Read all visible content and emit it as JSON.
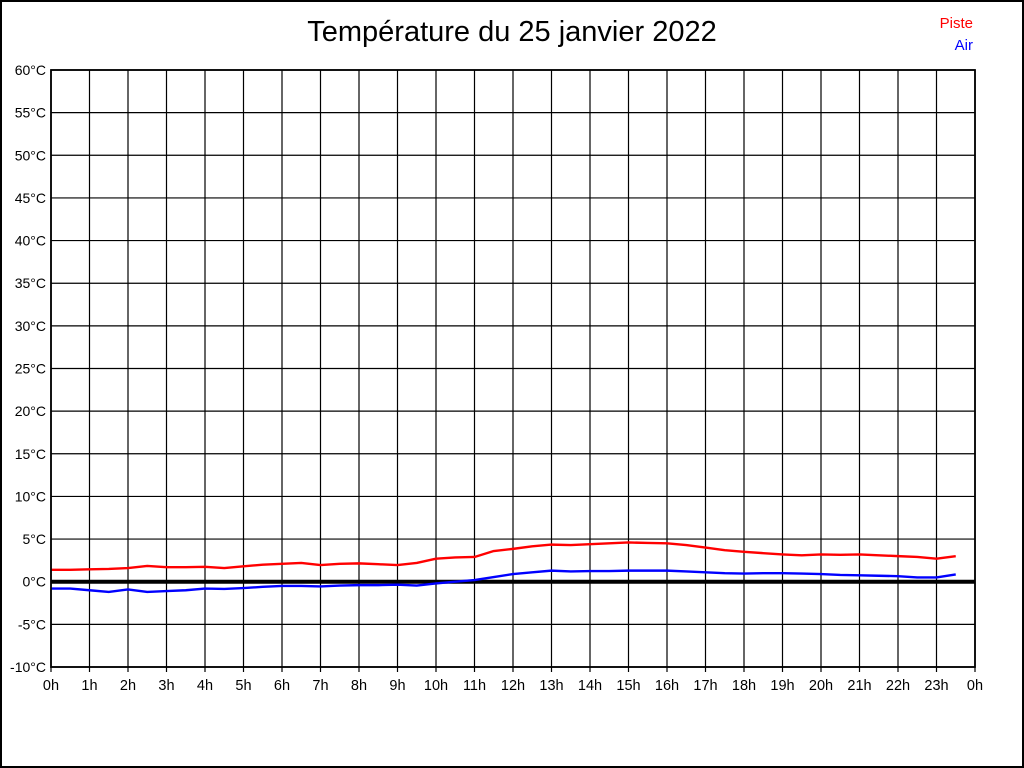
{
  "title": "Température du 25 janvier 2022",
  "legend": [
    {
      "label": "Piste",
      "color": "#ff0000"
    },
    {
      "label": "Air",
      "color": "#0000ff"
    }
  ],
  "colors": {
    "grid": "#000000",
    "frame": "#000000",
    "text": "#000000",
    "zero_line": "#000000",
    "background": "#ffffff"
  },
  "chart_data": {
    "type": "line",
    "title": "Température du 25 janvier 2022",
    "xlabel": "",
    "ylabel": "",
    "xlim": [
      0,
      24
    ],
    "ylim": [
      -10,
      60
    ],
    "grid": true,
    "legend_position": "top-right",
    "x_tick_values": [
      0,
      1,
      2,
      3,
      4,
      5,
      6,
      7,
      8,
      9,
      10,
      11,
      12,
      13,
      14,
      15,
      16,
      17,
      18,
      19,
      20,
      21,
      22,
      23,
      24
    ],
    "x_tick_labels": [
      "0h",
      "1h",
      "2h",
      "3h",
      "4h",
      "5h",
      "6h",
      "7h",
      "8h",
      "9h",
      "10h",
      "11h",
      "12h",
      "13h",
      "14h",
      "15h",
      "16h",
      "17h",
      "18h",
      "19h",
      "20h",
      "21h",
      "22h",
      "23h",
      "0h"
    ],
    "y_tick_values": [
      60,
      55,
      50,
      45,
      40,
      35,
      30,
      25,
      20,
      15,
      10,
      5,
      0,
      -5,
      -10
    ],
    "y_tick_labels": [
      "60°C",
      "55°C",
      "50°C",
      "45°C",
      "40°C",
      "35°C",
      "30°C",
      "25°C",
      "20°C",
      "15°C",
      "10°C",
      "5°C",
      "0°C",
      "-5°C",
      "-10°C"
    ],
    "zero_line": {
      "value": 0,
      "width": 4
    },
    "x": [
      0,
      0.5,
      1,
      1.5,
      2,
      2.5,
      3,
      3.5,
      4,
      4.5,
      5,
      5.5,
      6,
      6.5,
      7,
      7.5,
      8,
      8.5,
      9,
      9.5,
      10,
      10.5,
      11,
      11.5,
      12,
      12.5,
      13,
      13.5,
      14,
      14.5,
      15,
      15.5,
      16,
      16.5,
      17,
      17.5,
      18,
      18.5,
      19,
      19.5,
      20,
      20.5,
      21,
      21.5,
      22,
      22.5,
      23,
      23.5
    ],
    "series": [
      {
        "name": "Piste",
        "color": "#ff0000",
        "values": [
          1.4,
          1.4,
          1.45,
          1.5,
          1.6,
          1.85,
          1.7,
          1.7,
          1.75,
          1.6,
          1.8,
          2.0,
          2.1,
          2.2,
          1.95,
          2.1,
          2.15,
          2.05,
          1.95,
          2.2,
          2.7,
          2.85,
          2.9,
          3.6,
          3.85,
          4.15,
          4.35,
          4.3,
          4.4,
          4.5,
          4.6,
          4.55,
          4.5,
          4.3,
          4.0,
          3.7,
          3.5,
          3.35,
          3.2,
          3.1,
          3.2,
          3.15,
          3.2,
          3.1,
          3.0,
          2.9,
          2.7,
          3.0
        ]
      },
      {
        "name": "Air",
        "color": "#0000ff",
        "values": [
          -0.8,
          -0.8,
          -1.0,
          -1.2,
          -0.9,
          -1.2,
          -1.1,
          -1.0,
          -0.8,
          -0.85,
          -0.75,
          -0.6,
          -0.5,
          -0.5,
          -0.55,
          -0.45,
          -0.4,
          -0.4,
          -0.35,
          -0.45,
          -0.2,
          0.0,
          0.2,
          0.55,
          0.9,
          1.1,
          1.3,
          1.2,
          1.25,
          1.25,
          1.3,
          1.3,
          1.3,
          1.2,
          1.1,
          1.0,
          0.95,
          1.0,
          1.0,
          0.95,
          0.9,
          0.8,
          0.75,
          0.7,
          0.65,
          0.5,
          0.5,
          0.85
        ]
      }
    ]
  }
}
